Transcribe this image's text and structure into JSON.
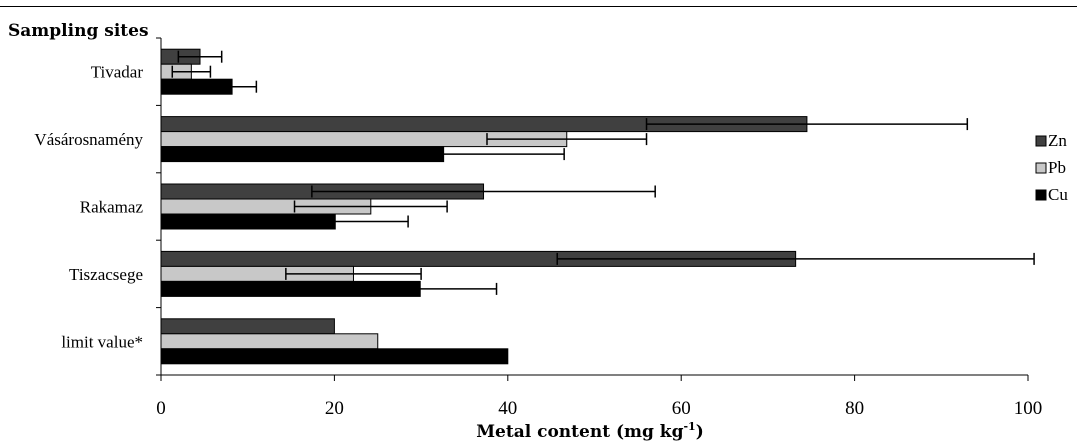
{
  "chart_data": {
    "type": "bar",
    "orientation": "horizontal",
    "title": "Sampling sites",
    "xlabel": "Metal content (mg kg-1)",
    "xlabel_parts": {
      "main": "Metal content (mg kg",
      "sup": "-1",
      "end": ")"
    },
    "ylabel": "",
    "xlim": [
      0,
      100
    ],
    "xticks": [
      0,
      20,
      40,
      60,
      80,
      100
    ],
    "grid": false,
    "legend_position": "right",
    "categories": [
      "Tivadar",
      "Vásárosnamény",
      "Rakamaz",
      "Tiszacsege",
      "limit value*"
    ],
    "series": [
      {
        "name": "Zn",
        "color": "#404040",
        "values": [
          4.5,
          74.5,
          37.2,
          73.2,
          20
        ],
        "error": [
          2.5,
          18.5,
          19.8,
          27.5,
          null
        ]
      },
      {
        "name": "Pb",
        "color": "#c8c8c8",
        "values": [
          3.5,
          46.8,
          24.2,
          22.2,
          25
        ],
        "error": [
          2.2,
          9.2,
          8.8,
          7.8,
          null
        ]
      },
      {
        "name": "Cu",
        "color": "#000000",
        "values": [
          8.2,
          32.6,
          20.1,
          29.9,
          40
        ],
        "error": [
          2.8,
          13.9,
          8.4,
          8.8,
          null
        ]
      }
    ]
  }
}
